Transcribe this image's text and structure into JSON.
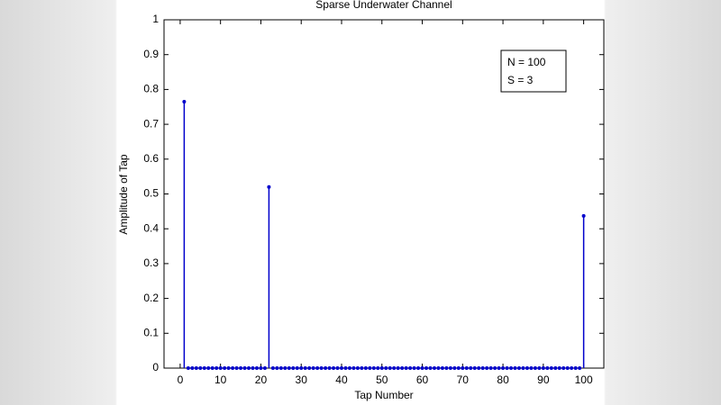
{
  "chart_data": {
    "type": "stem",
    "title": "Sparse Underwater Channel",
    "xlabel": "Tap Number",
    "ylabel": "Amplitude of Tap",
    "annotation": [
      "N = 100",
      "S = 3"
    ],
    "x": [
      1,
      2,
      3,
      4,
      5,
      6,
      7,
      8,
      9,
      10,
      11,
      12,
      13,
      14,
      15,
      16,
      17,
      18,
      19,
      20,
      21,
      22,
      23,
      24,
      25,
      26,
      27,
      28,
      29,
      30,
      31,
      32,
      33,
      34,
      35,
      36,
      37,
      38,
      39,
      40,
      41,
      42,
      43,
      44,
      45,
      46,
      47,
      48,
      49,
      50,
      51,
      52,
      53,
      54,
      55,
      56,
      57,
      58,
      59,
      60,
      61,
      62,
      63,
      64,
      65,
      66,
      67,
      68,
      69,
      70,
      71,
      72,
      73,
      74,
      75,
      76,
      77,
      78,
      79,
      80,
      81,
      82,
      83,
      84,
      85,
      86,
      87,
      88,
      89,
      90,
      91,
      92,
      93,
      94,
      95,
      96,
      97,
      98,
      99,
      100
    ],
    "values": [
      0.765,
      0,
      0,
      0,
      0,
      0,
      0,
      0,
      0,
      0,
      0,
      0,
      0,
      0,
      0,
      0,
      0,
      0,
      0,
      0,
      0,
      0.52,
      0,
      0,
      0,
      0,
      0,
      0,
      0,
      0,
      0,
      0,
      0,
      0,
      0,
      0,
      0,
      0,
      0,
      0,
      0,
      0,
      0,
      0,
      0,
      0,
      0,
      0,
      0,
      0,
      0,
      0,
      0,
      0,
      0,
      0,
      0,
      0,
      0,
      0,
      0,
      0,
      0,
      0,
      0,
      0,
      0,
      0,
      0,
      0,
      0,
      0,
      0,
      0,
      0,
      0,
      0,
      0,
      0,
      0,
      0,
      0,
      0,
      0,
      0,
      0,
      0,
      0,
      0,
      0,
      0,
      0,
      0,
      0,
      0,
      0,
      0,
      0,
      0,
      0.437
    ],
    "color": "#0000cc",
    "xlim": [
      -4,
      105
    ],
    "ylim": [
      0,
      1
    ],
    "xticks": [
      0,
      10,
      20,
      30,
      40,
      50,
      60,
      70,
      80,
      90,
      100
    ],
    "yticks": [
      0,
      0.1,
      0.2,
      0.3,
      0.4,
      0.5,
      0.6,
      0.7,
      0.8,
      0.9,
      1
    ]
  }
}
